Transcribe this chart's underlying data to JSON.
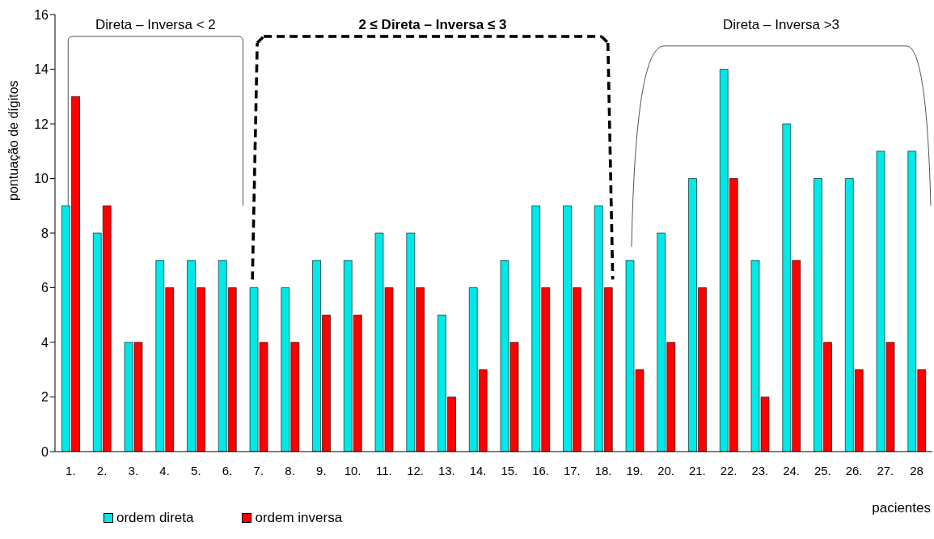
{
  "chart_data": {
    "type": "bar",
    "xlabel": "pacientes",
    "ylabel": "pontuação de dígitos",
    "categories": [
      "1.",
      "2.",
      "3.",
      "4.",
      "5.",
      "6.",
      "7.",
      "8.",
      "9.",
      "10.",
      "11.",
      "12.",
      "13.",
      "14.",
      "15.",
      "16.",
      "17.",
      "18.",
      "19.",
      "20.",
      "21.",
      "22.",
      "23.",
      "24.",
      "25.",
      "26.",
      "27.",
      "28"
    ],
    "series": [
      {
        "name": "ordem direta",
        "color": "#00e8e8",
        "values": [
          9,
          8,
          4,
          7,
          7,
          7,
          6,
          6,
          7,
          7,
          8,
          8,
          5,
          6,
          7,
          9,
          9,
          9,
          7,
          8,
          10,
          14,
          7,
          12,
          10,
          10,
          11,
          11
        ]
      },
      {
        "name": "ordem inversa",
        "color": "#ff0000",
        "values": [
          13,
          9,
          4,
          6,
          6,
          6,
          4,
          4,
          5,
          5,
          6,
          6,
          2,
          3,
          4,
          6,
          6,
          6,
          3,
          4,
          6,
          10,
          2,
          7,
          4,
          3,
          4,
          3
        ]
      }
    ],
    "ylim": [
      0,
      16
    ],
    "yticks": [
      0,
      2,
      4,
      6,
      8,
      10,
      12,
      14,
      16
    ],
    "grid": false,
    "legend": "bottom left",
    "annotations": [
      "Direta – Inversa < 2",
      "2 ≤ Direta – Inversa ≤ 3",
      "Direta – Inversa >3"
    ]
  }
}
